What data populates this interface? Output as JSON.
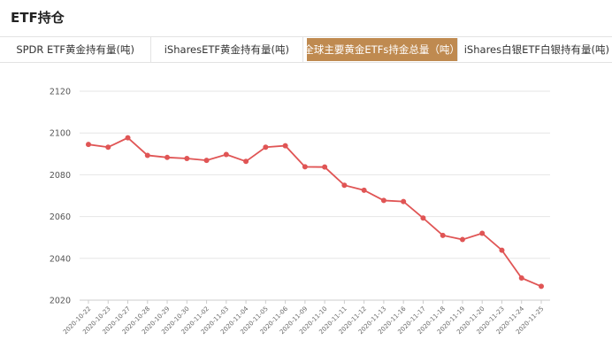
{
  "header": {
    "title": "ETF持仓"
  },
  "tabs": [
    {
      "label": "SPDR ETF黄金持有量(吨)",
      "active": false
    },
    {
      "label": "iSharesETF黄金持有量(吨)",
      "active": false
    },
    {
      "label": "全球主要黄金ETFs持金总量（吨）",
      "active": true
    },
    {
      "label": "iShares白银ETF白银持有量(吨)",
      "active": false
    }
  ],
  "colors": {
    "line": "#e05555",
    "active_tab": "#bf8a50",
    "grid": "#e6e6e6"
  },
  "chart_data": {
    "type": "line",
    "title": "",
    "xlabel": "",
    "ylabel": "",
    "ylim": [
      2020,
      2120
    ],
    "yticks": [
      2020,
      2040,
      2060,
      2080,
      2100,
      2120
    ],
    "grid": true,
    "categories": [
      "2020-10-22",
      "2020-10-23",
      "2020-10-27",
      "2020-10-28",
      "2020-10-29",
      "2020-10-30",
      "2020-11-02",
      "2020-11-03",
      "2020-11-04",
      "2020-11-05",
      "2020-11-06",
      "2020-11-09",
      "2020-11-10",
      "2020-11-11",
      "2020-11-12",
      "2020-11-13",
      "2020-11-16",
      "2020-11-17",
      "2020-11-18",
      "2020-11-19",
      "2020-11-20",
      "2020-11-23",
      "2020-11-24",
      "2020-11-25"
    ],
    "series": [
      {
        "values": [
          2094.5,
          2093.2,
          2097.7,
          2089.3,
          2088.3,
          2087.8,
          2086.9,
          2089.7,
          2086.4,
          2093.2,
          2093.9,
          2083.8,
          2083.7,
          2075.0,
          2072.6,
          2067.7,
          2067.2,
          2059.3,
          2051.0,
          2049.0,
          2052.0,
          2043.9,
          2030.6,
          2026.6
        ]
      }
    ]
  }
}
